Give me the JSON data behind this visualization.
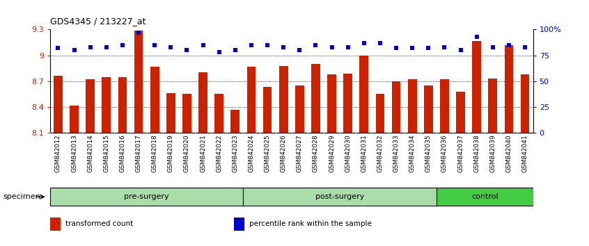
{
  "title": "GDS4345 / 213227_at",
  "categories": [
    "GSM842012",
    "GSM842013",
    "GSM842014",
    "GSM842015",
    "GSM842016",
    "GSM842017",
    "GSM842018",
    "GSM842019",
    "GSM842020",
    "GSM842021",
    "GSM842022",
    "GSM842023",
    "GSM842024",
    "GSM842025",
    "GSM842026",
    "GSM842027",
    "GSM842028",
    "GSM842029",
    "GSM842030",
    "GSM842031",
    "GSM842032",
    "GSM842033",
    "GSM842034",
    "GSM842035",
    "GSM842036",
    "GSM842037",
    "GSM842038",
    "GSM842039",
    "GSM842040",
    "GSM842041"
  ],
  "bar_values": [
    8.76,
    8.42,
    8.72,
    8.75,
    8.75,
    9.29,
    8.87,
    8.56,
    8.55,
    8.8,
    8.55,
    8.37,
    8.87,
    8.63,
    8.88,
    8.65,
    8.9,
    8.78,
    8.79,
    9.0,
    8.55,
    8.7,
    8.72,
    8.65,
    8.72,
    8.58,
    9.17,
    8.73,
    9.12,
    8.78
  ],
  "percentile_values": [
    82,
    80,
    83,
    83,
    85,
    97,
    85,
    83,
    80,
    85,
    78,
    80,
    85,
    85,
    83,
    80,
    85,
    83,
    83,
    87,
    87,
    82,
    82,
    82,
    83,
    80,
    93,
    83,
    85,
    83
  ],
  "groups": [
    {
      "label": "pre-surgery",
      "start": 0,
      "end": 11,
      "color": "#aaddaa"
    },
    {
      "label": "post-surgery",
      "start": 12,
      "end": 23,
      "color": "#aaddaa"
    },
    {
      "label": "control",
      "start": 24,
      "end": 29,
      "color": "#44cc44"
    }
  ],
  "ymin": 8.1,
  "ymax": 9.3,
  "ytick_vals": [
    8.1,
    8.4,
    8.7,
    9.0,
    9.3
  ],
  "ytick_labels": [
    "8.1",
    "8.4",
    "8.7",
    "9",
    "9.3"
  ],
  "y2ticks": [
    0,
    25,
    50,
    75,
    100
  ],
  "y2labels": [
    "0",
    "25",
    "50",
    "75",
    "100%"
  ],
  "bar_color": "#cc2200",
  "dot_color": "#0000cc",
  "bar_width": 0.55,
  "specimen_label": "specimen",
  "legend_items": [
    {
      "color": "#cc2200",
      "label": "transformed count"
    },
    {
      "color": "#0000cc",
      "label": "percentile rank within the sample"
    }
  ],
  "xtick_bg_color": "#cccccc",
  "group_border_color": "#888888"
}
